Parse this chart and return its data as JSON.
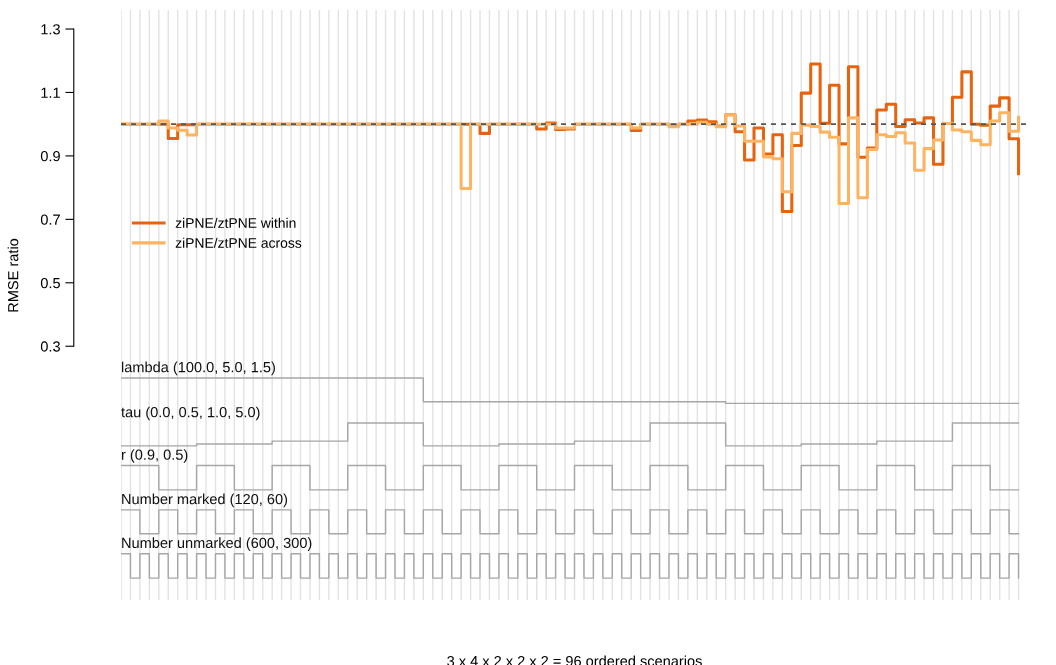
{
  "chart_data": {
    "type": "step",
    "xlabel": "3 x 4 x 2 x 2 x 2 = 96 ordered scenarios",
    "ylabel": "RMSE ratio",
    "categories": [
      null,
      null,
      null,
      null,
      null,
      null,
      null,
      null,
      null,
      null,
      null,
      null,
      null,
      null,
      null,
      null,
      null,
      null,
      null,
      null,
      null,
      null,
      null,
      null,
      null,
      null,
      null,
      null,
      null,
      null,
      null,
      null,
      null,
      null,
      null,
      null,
      null,
      null,
      null,
      null,
      null,
      null,
      null,
      null,
      null,
      null,
      null,
      null,
      null,
      null,
      null,
      null,
      null,
      null,
      null,
      null,
      null,
      null,
      null,
      null,
      null,
      null,
      null,
      null,
      null,
      null,
      null,
      null,
      null,
      null,
      null,
      null,
      null,
      null,
      null,
      null,
      null,
      null,
      null,
      null,
      null,
      null,
      null,
      null,
      null,
      null,
      null,
      null,
      null,
      null,
      null,
      null,
      null,
      null,
      null,
      null
    ],
    "ylim": [
      -0.5,
      1.36
    ],
    "yticks": [
      0.3,
      0.5,
      0.7,
      0.9,
      1.1,
      1.3
    ],
    "tick_labels": "y",
    "grid": "x",
    "legend": "left",
    "series": [
      {
        "name": "ziPNE/ztPNE within",
        "color": "#e6640f",
        "values": [
          1.0,
          1.0,
          1.0,
          1.0,
          1.0,
          0.955,
          0.998,
          0.998,
          1.0,
          1.0,
          1.0,
          1.0,
          1.0,
          1.0,
          1.0,
          1.0,
          1.0,
          1.0,
          1.0,
          1.0,
          1.0,
          1.0,
          1.0,
          1.0,
          1.0,
          1.0,
          1.0,
          1.0,
          1.0,
          1.0,
          1.0,
          1.0,
          1.0,
          1.0,
          1.0,
          1.0,
          1.0,
          1.0,
          0.971,
          1.0,
          1.0,
          1.0,
          1.0,
          1.0,
          0.985,
          1.004,
          0.983,
          0.985,
          1.0,
          1.0,
          1.0,
          1.0,
          1.0,
          1.0,
          0.98,
          1.0,
          1.0,
          1.0,
          0.997,
          1.0,
          1.01,
          1.013,
          1.008,
          0.994,
          1.03,
          0.976,
          0.887,
          0.988,
          0.906,
          0.967,
          0.725,
          0.933,
          1.098,
          1.19,
          1.003,
          1.123,
          0.938,
          1.181,
          0.896,
          0.925,
          1.045,
          1.063,
          0.993,
          1.014,
          1.004,
          1.02,
          0.874,
          1.002,
          1.085,
          1.165,
          1.0,
          0.997,
          1.057,
          1.083,
          0.954,
          0.844
        ]
      },
      {
        "name": "ziPNE/ztPNE across",
        "color": "#fdb462",
        "values": [
          1.0,
          1.0,
          1.0,
          1.0,
          1.01,
          0.988,
          0.981,
          0.966,
          1.0,
          1.0,
          1.0,
          1.0,
          1.0,
          1.0,
          1.0,
          1.0,
          1.0,
          1.0,
          1.0,
          1.0,
          1.0,
          1.0,
          1.0,
          1.0,
          1.0,
          1.0,
          1.0,
          1.0,
          1.0,
          1.0,
          1.0,
          1.0,
          1.0,
          1.0,
          1.0,
          1.0,
          0.797,
          1.0,
          1.0,
          1.0,
          1.0,
          1.0,
          1.0,
          1.0,
          1.0,
          1.0,
          0.988,
          0.988,
          1.0,
          1.0,
          1.0,
          1.0,
          1.0,
          1.0,
          0.988,
          1.0,
          1.0,
          1.0,
          0.992,
          1.0,
          1.0,
          1.006,
          1.0,
          0.992,
          1.03,
          0.994,
          0.946,
          0.946,
          0.897,
          0.891,
          0.787,
          0.971,
          0.997,
          0.993,
          0.975,
          0.959,
          0.75,
          1.02,
          0.768,
          0.92,
          0.967,
          0.961,
          0.973,
          0.941,
          0.855,
          0.923,
          0.95,
          1.002,
          0.982,
          0.976,
          0.949,
          0.935,
          1.01,
          1.036,
          0.978,
          1.022
        ]
      },
      {
        "color": "#a6a6a6",
        "values": [
          0.2,
          0.2,
          0.2,
          0.2,
          0.2,
          0.2,
          0.2,
          0.2,
          0.2,
          0.2,
          0.2,
          0.2,
          0.2,
          0.2,
          0.2,
          0.2,
          0.2,
          0.2,
          0.2,
          0.2,
          0.2,
          0.2,
          0.2,
          0.2,
          0.2,
          0.2,
          0.2,
          0.2,
          0.2,
          0.2,
          0.2,
          0.2,
          0.125,
          0.125,
          0.125,
          0.125,
          0.125,
          0.125,
          0.125,
          0.125,
          0.125,
          0.125,
          0.125,
          0.125,
          0.125,
          0.125,
          0.125,
          0.125,
          0.125,
          0.125,
          0.125,
          0.125,
          0.125,
          0.125,
          0.125,
          0.125,
          0.125,
          0.125,
          0.125,
          0.125,
          0.125,
          0.125,
          0.125,
          0.125,
          0.12,
          0.12,
          0.12,
          0.12,
          0.12,
          0.12,
          0.12,
          0.12,
          0.12,
          0.12,
          0.12,
          0.12,
          0.12,
          0.12,
          0.12,
          0.12,
          0.12,
          0.12,
          0.12,
          0.12,
          0.12,
          0.12,
          0.12,
          0.12,
          0.12,
          0.12,
          0.12,
          0.12,
          0.12,
          0.12,
          0.12,
          0.12
        ]
      },
      {
        "color": "#a6a6a6",
        "values": [
          -0.014,
          -0.014,
          -0.014,
          -0.014,
          -0.014,
          -0.014,
          -0.014,
          -0.014,
          -0.008,
          -0.008,
          -0.008,
          -0.008,
          -0.008,
          -0.008,
          -0.008,
          -0.008,
          0.001,
          0.001,
          0.001,
          0.001,
          0.001,
          0.001,
          0.001,
          0.001,
          0.058,
          0.058,
          0.058,
          0.058,
          0.058,
          0.058,
          0.058,
          0.058,
          -0.014,
          -0.014,
          -0.014,
          -0.014,
          -0.014,
          -0.014,
          -0.014,
          -0.014,
          -0.008,
          -0.008,
          -0.008,
          -0.008,
          -0.008,
          -0.008,
          -0.008,
          -0.008,
          0.001,
          0.001,
          0.001,
          0.001,
          0.001,
          0.001,
          0.001,
          0.001,
          0.058,
          0.058,
          0.058,
          0.058,
          0.058,
          0.058,
          0.058,
          0.058,
          -0.014,
          -0.014,
          -0.014,
          -0.014,
          -0.014,
          -0.014,
          -0.014,
          -0.014,
          -0.008,
          -0.008,
          -0.008,
          -0.008,
          -0.008,
          -0.008,
          -0.008,
          -0.008,
          0.001,
          0.001,
          0.001,
          0.001,
          0.001,
          0.001,
          0.001,
          0.001,
          0.058,
          0.058,
          0.058,
          0.058,
          0.058,
          0.058,
          0.058,
          0.058
        ]
      },
      {
        "color": "#a6a6a6",
        "values": [
          -0.076,
          -0.076,
          -0.076,
          -0.076,
          -0.153,
          -0.153,
          -0.153,
          -0.153,
          -0.076,
          -0.076,
          -0.076,
          -0.076,
          -0.153,
          -0.153,
          -0.153,
          -0.153,
          -0.076,
          -0.076,
          -0.076,
          -0.076,
          -0.153,
          -0.153,
          -0.153,
          -0.153,
          -0.076,
          -0.076,
          -0.076,
          -0.076,
          -0.153,
          -0.153,
          -0.153,
          -0.153,
          -0.076,
          -0.076,
          -0.076,
          -0.076,
          -0.153,
          -0.153,
          -0.153,
          -0.153,
          -0.076,
          -0.076,
          -0.076,
          -0.076,
          -0.153,
          -0.153,
          -0.153,
          -0.153,
          -0.076,
          -0.076,
          -0.076,
          -0.076,
          -0.153,
          -0.153,
          -0.153,
          -0.153,
          -0.076,
          -0.076,
          -0.076,
          -0.076,
          -0.153,
          -0.153,
          -0.153,
          -0.153,
          -0.076,
          -0.076,
          -0.076,
          -0.076,
          -0.153,
          -0.153,
          -0.153,
          -0.153,
          -0.076,
          -0.076,
          -0.076,
          -0.076,
          -0.153,
          -0.153,
          -0.153,
          -0.153,
          -0.076,
          -0.076,
          -0.076,
          -0.076,
          -0.153,
          -0.153,
          -0.153,
          -0.153,
          -0.076,
          -0.076,
          -0.076,
          -0.076,
          -0.153,
          -0.153,
          -0.153,
          -0.153
        ]
      },
      {
        "color": "#a6a6a6",
        "values": [
          -0.216,
          -0.216,
          -0.291,
          -0.291,
          -0.216,
          -0.216,
          -0.291,
          -0.291,
          -0.216,
          -0.216,
          -0.291,
          -0.291,
          -0.216,
          -0.216,
          -0.291,
          -0.291,
          -0.216,
          -0.216,
          -0.291,
          -0.291,
          -0.216,
          -0.216,
          -0.291,
          -0.291,
          -0.216,
          -0.216,
          -0.291,
          -0.291,
          -0.216,
          -0.216,
          -0.291,
          -0.291,
          -0.216,
          -0.216,
          -0.291,
          -0.291,
          -0.216,
          -0.216,
          -0.291,
          -0.291,
          -0.216,
          -0.216,
          -0.291,
          -0.291,
          -0.216,
          -0.216,
          -0.291,
          -0.291,
          -0.216,
          -0.216,
          -0.291,
          -0.291,
          -0.216,
          -0.216,
          -0.291,
          -0.291,
          -0.216,
          -0.216,
          -0.291,
          -0.291,
          -0.216,
          -0.216,
          -0.291,
          -0.291,
          -0.216,
          -0.216,
          -0.291,
          -0.291,
          -0.216,
          -0.216,
          -0.291,
          -0.291,
          -0.216,
          -0.216,
          -0.291,
          -0.291,
          -0.216,
          -0.216,
          -0.291,
          -0.291,
          -0.216,
          -0.216,
          -0.291,
          -0.291,
          -0.216,
          -0.216,
          -0.291,
          -0.291,
          -0.216,
          -0.216,
          -0.291,
          -0.291,
          -0.216,
          -0.216,
          -0.291,
          -0.291
        ]
      },
      {
        "color": "#a6a6a6",
        "values": [
          -0.354,
          -0.431,
          -0.354,
          -0.431,
          -0.354,
          -0.431,
          -0.354,
          -0.431,
          -0.354,
          -0.431,
          -0.354,
          -0.431,
          -0.354,
          -0.431,
          -0.354,
          -0.431,
          -0.354,
          -0.431,
          -0.354,
          -0.431,
          -0.354,
          -0.431,
          -0.354,
          -0.431,
          -0.354,
          -0.431,
          -0.354,
          -0.431,
          -0.354,
          -0.431,
          -0.354,
          -0.431,
          -0.354,
          -0.431,
          -0.354,
          -0.431,
          -0.354,
          -0.431,
          -0.354,
          -0.431,
          -0.354,
          -0.431,
          -0.354,
          -0.431,
          -0.354,
          -0.431,
          -0.354,
          -0.431,
          -0.354,
          -0.431,
          -0.354,
          -0.431,
          -0.354,
          -0.431,
          -0.354,
          -0.431,
          -0.354,
          -0.431,
          -0.354,
          -0.431,
          -0.354,
          -0.431,
          -0.354,
          -0.431,
          -0.354,
          -0.431,
          -0.354,
          -0.431,
          -0.354,
          -0.431,
          -0.354,
          -0.431,
          -0.354,
          -0.431,
          -0.354,
          -0.431,
          -0.354,
          -0.431,
          -0.354,
          -0.431,
          -0.354,
          -0.431,
          -0.354,
          -0.431,
          -0.354,
          -0.431,
          -0.354,
          -0.431,
          -0.354,
          -0.431,
          -0.354,
          -0.431,
          -0.354,
          -0.431,
          -0.354,
          -0.431
        ]
      }
    ],
    "annotations": [
      "lambda (100.0, 5.0, 1.5)",
      "tau (0.0, 0.5, 1.0, 5.0)",
      "r (0.9, 0.5)",
      "Number marked (120, 60)",
      "Number unmarked (600, 300)"
    ],
    "ref_lines": [
      {
        "axis": "y",
        "value": 1.0,
        "color": "#555555",
        "line_style": "dashed"
      }
    ]
  }
}
